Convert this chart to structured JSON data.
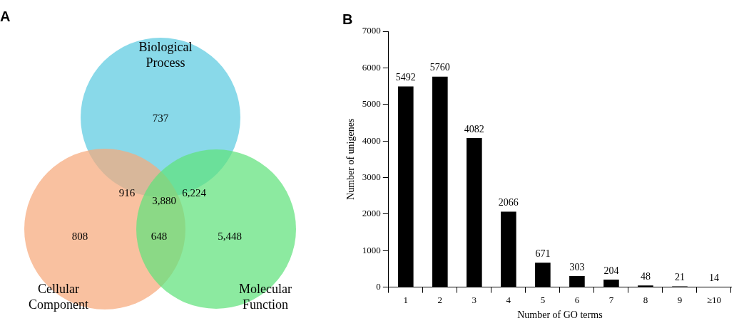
{
  "chart_data": [
    {
      "type": "other",
      "title": "A",
      "annotations": [
        "Biological Process",
        "Cellular Component",
        "Molecular Function",
        "737",
        "916",
        "6,224",
        "3,880",
        "808",
        "648",
        "5,448"
      ],
      "colors": [
        "#5ccbe0",
        "#f7a97c",
        "#5fe27c"
      ]
    },
    {
      "type": "bar",
      "title": "B",
      "categories": [
        "1",
        "2",
        "3",
        "4",
        "5",
        "6",
        "7",
        "8",
        "9",
        "≥10"
      ],
      "values": [
        5492,
        5760,
        4082,
        2066,
        671,
        303,
        204,
        48,
        21,
        14
      ],
      "color": "#000000",
      "ylim": [
        0,
        7000
      ],
      "yticks": [
        0,
        1000,
        2000,
        3000,
        4000,
        5000,
        6000,
        7000
      ],
      "xlabel": "Number of GO terms",
      "ylabel": "Number of unigenes",
      "data_labels": true
    }
  ]
}
